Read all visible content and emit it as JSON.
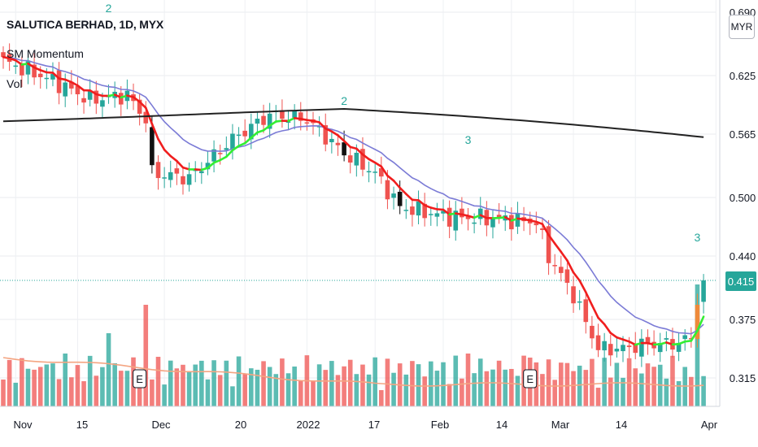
{
  "header": {
    "symbol_line": "SALUTICA BERHAD, 1D, MYX",
    "indicator_1": "SM Momentum",
    "indicator_2": "Vol"
  },
  "currency_button": "MYR",
  "last_price": "0.415",
  "colors": {
    "up": "#26a69a",
    "down": "#ef5350",
    "ema_fast_down": "#f01e1e",
    "ema_fast_up": "#33ee33",
    "ma_slow": "#7b7bd6",
    "ma_long": "#222222",
    "vol_ma": "#f4a582"
  },
  "chart_data": {
    "type": "candlestick",
    "x_tick_labels": [
      "Nov",
      "15",
      "Dec",
      "20",
      "2022",
      "17",
      "Feb",
      "14",
      "Mar",
      "14",
      "Apr"
    ],
    "y_tick_labels": [
      "0.315",
      "0.375",
      "0.440",
      "0.500",
      "0.565",
      "0.625",
      "0.690"
    ],
    "ylim": [
      0.29,
      0.69
    ],
    "last_price": 0.415,
    "signal_labels": [
      "2",
      "2",
      "3",
      "3"
    ],
    "earnings_markers": [
      "E",
      "E"
    ],
    "key_points": [
      {
        "bar": 0,
        "close": 0.64
      },
      {
        "bar": 8,
        "close": 0.62
      },
      {
        "bar": 14,
        "close": 0.6
      },
      {
        "bar": 20,
        "close": 0.605
      },
      {
        "bar": 23,
        "close": 0.58
      },
      {
        "bar": 24,
        "close": 0.525
      },
      {
        "bar": 30,
        "close": 0.52
      },
      {
        "bar": 37,
        "close": 0.56
      },
      {
        "bar": 43,
        "close": 0.585
      },
      {
        "bar": 49,
        "close": 0.58
      },
      {
        "bar": 55,
        "close": 0.545
      },
      {
        "bar": 60,
        "close": 0.525
      },
      {
        "bar": 64,
        "close": 0.49
      },
      {
        "bar": 72,
        "close": 0.48
      },
      {
        "bar": 80,
        "close": 0.478
      },
      {
        "bar": 86,
        "close": 0.475
      },
      {
        "bar": 88,
        "close": 0.44
      },
      {
        "bar": 92,
        "close": 0.4
      },
      {
        "bar": 96,
        "close": 0.345
      },
      {
        "bar": 100,
        "close": 0.345
      },
      {
        "bar": 104,
        "close": 0.35
      },
      {
        "bar": 108,
        "close": 0.35
      },
      {
        "bar": 111,
        "close": 0.355
      },
      {
        "bar": 112,
        "close": 0.39
      },
      {
        "bar": 113,
        "close": 0.415
      }
    ],
    "series": [
      {
        "name": "fast EMA",
        "color": "#f01e1e"
      },
      {
        "name": "slow MA",
        "color": "#7b7bd6"
      },
      {
        "name": "long MA",
        "color": "#222222"
      },
      {
        "name": "volume",
        "color": "#26a69a"
      }
    ]
  }
}
